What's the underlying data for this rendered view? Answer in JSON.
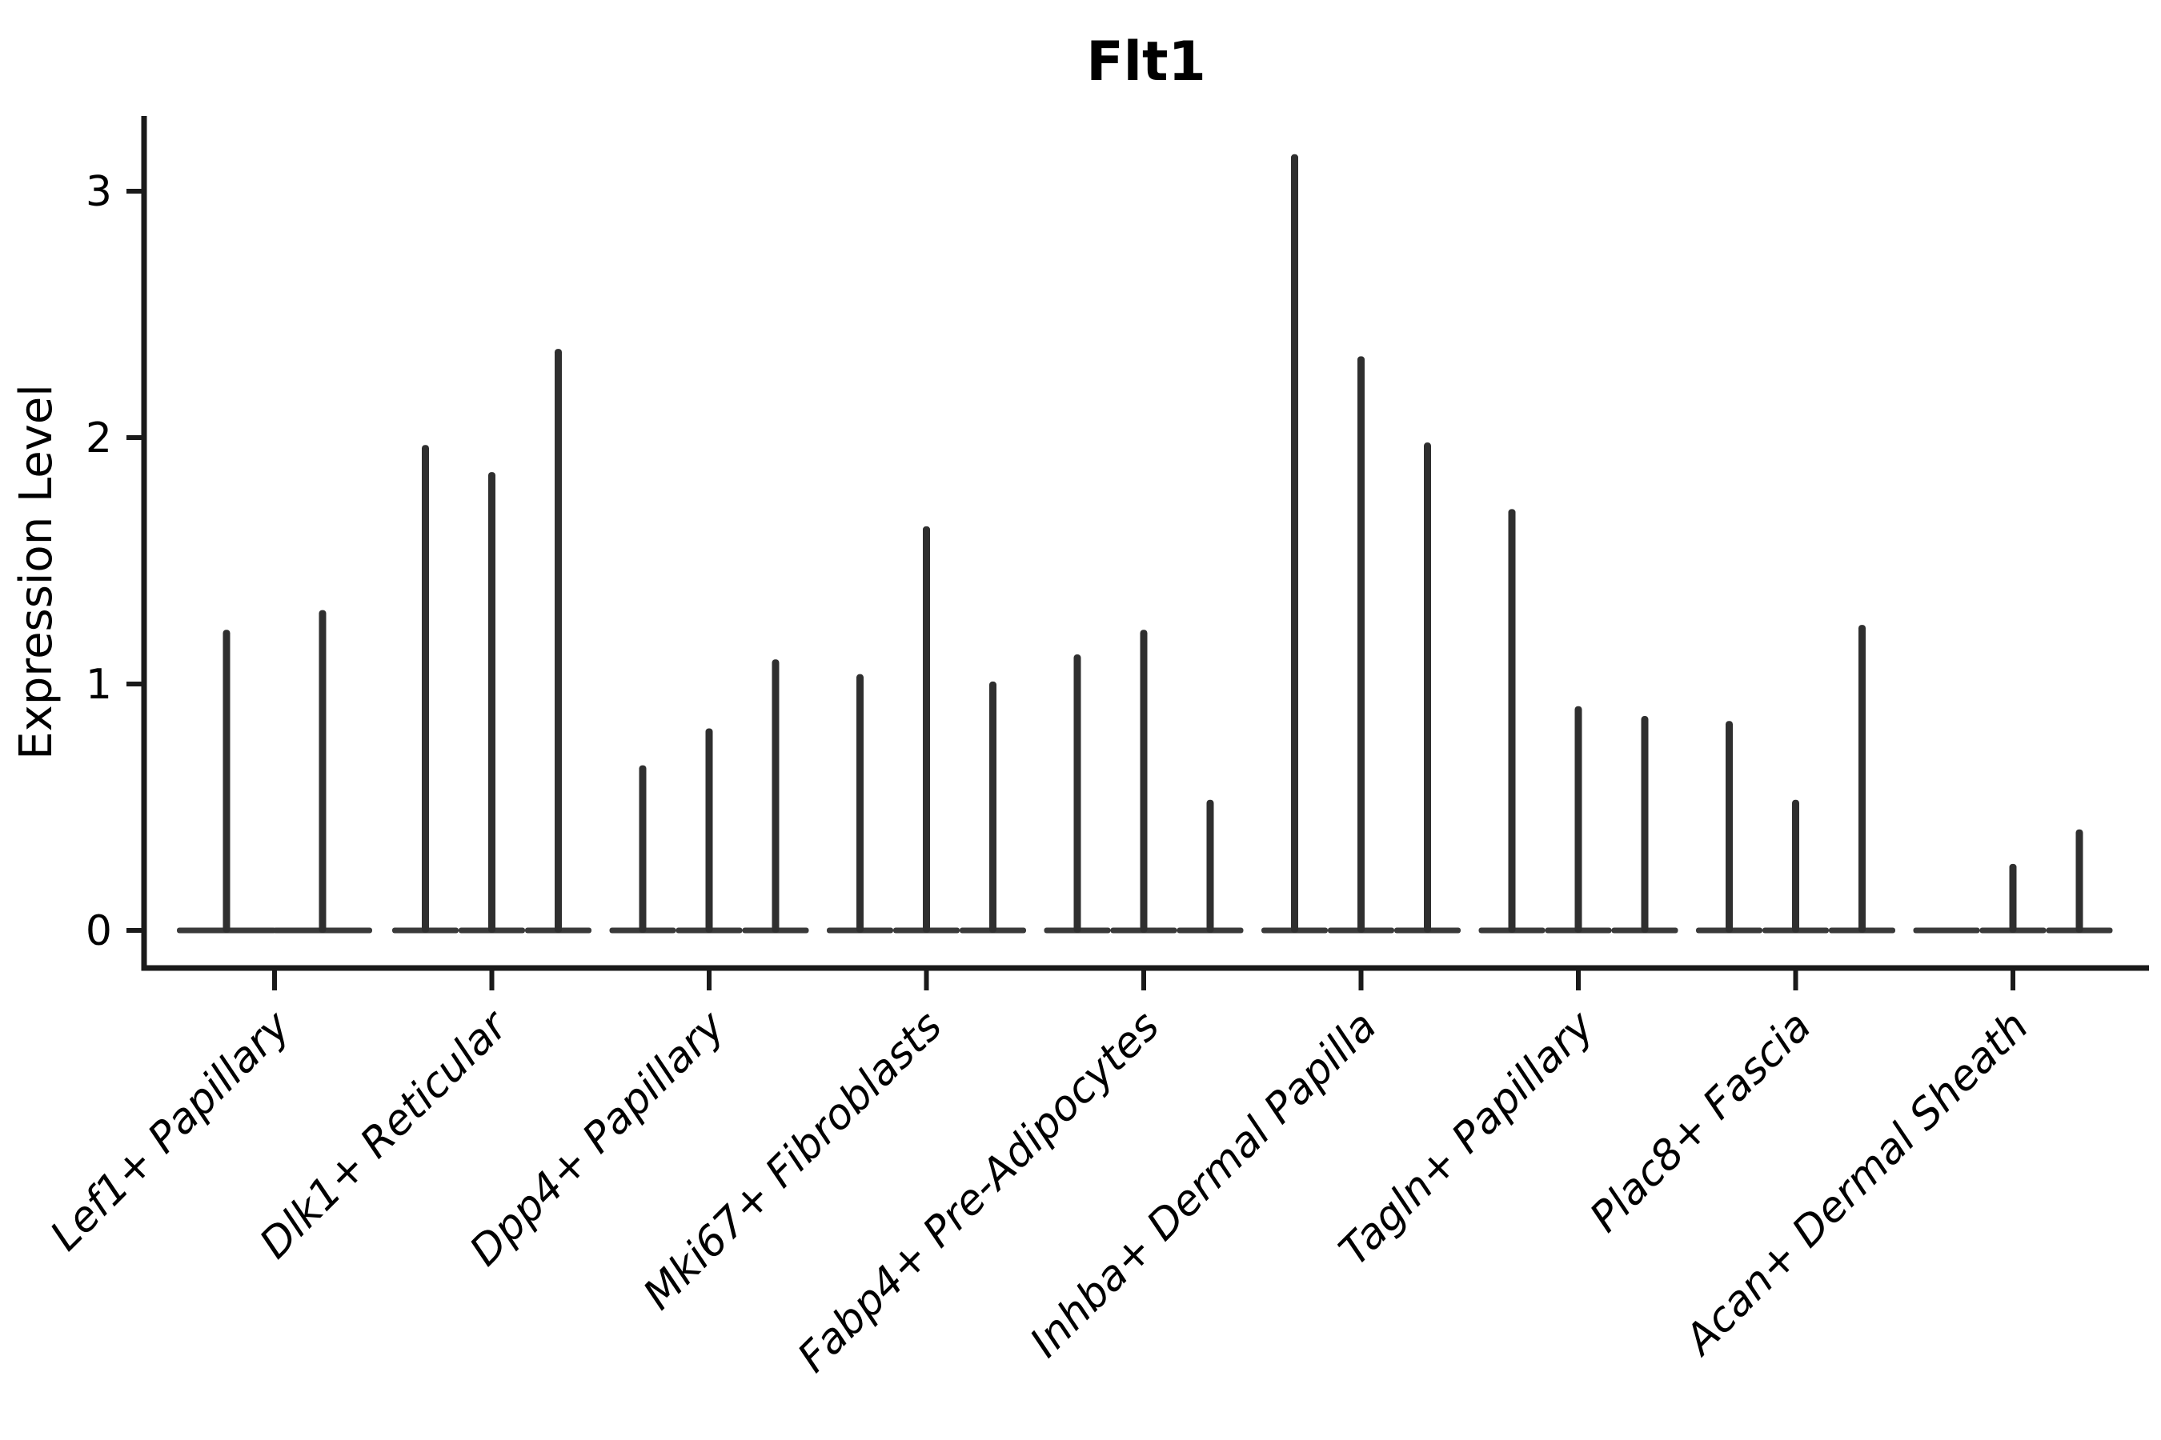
{
  "chart_data": {
    "type": "violin",
    "title": "Flt1",
    "ylabel": "Expression Level",
    "xlabel": "",
    "ylim": [
      0,
      3.4
    ],
    "yticks": [
      "0",
      "1",
      "2",
      "3"
    ],
    "ytick_values": [
      0,
      1,
      2,
      3
    ],
    "grid": false,
    "legend_position": "none",
    "categories": [
      "Lef1+ Papillary",
      "Dlk1+ Reticular",
      "Dpp4+ Papillary",
      "Mki67+ Fibroblasts",
      "Fabp4+ Pre-Adipocytes",
      "Inhba+ Dermal Papilla",
      "Tagln+ Papillary",
      "Plac8+ Fascia",
      "Acan+ Dermal Sheath"
    ],
    "series": [
      {
        "category": "Lef1+ Papillary",
        "violin_maxima": [
          1.22,
          1.3
        ]
      },
      {
        "category": "Dlk1+ Reticular",
        "violin_maxima": [
          1.97,
          1.86,
          2.36
        ]
      },
      {
        "category": "Dpp4+ Papillary",
        "violin_maxima": [
          0.67,
          0.82,
          1.1
        ]
      },
      {
        "category": "Mki67+ Fibroblasts",
        "violin_maxima": [
          1.04,
          1.64,
          1.01
        ]
      },
      {
        "category": "Fabp4+ Pre-Adipocytes",
        "violin_maxima": [
          1.12,
          1.22,
          0.53
        ]
      },
      {
        "category": "Inhba+ Dermal Papilla",
        "violin_maxima": [
          3.15,
          2.33,
          1.98
        ]
      },
      {
        "category": "Tagln+ Papillary",
        "violin_maxima": [
          1.71,
          0.91,
          0.87
        ]
      },
      {
        "category": "Plac8+ Fascia",
        "violin_maxima": [
          0.85,
          0.53,
          1.24
        ]
      },
      {
        "category": "Acan+ Dermal Sheath",
        "violin_maxima": [
          0.0,
          0.27,
          0.41
        ]
      }
    ],
    "colors": {
      "violin": "#2f2f2f",
      "violin_base": "#3a3a3a",
      "spine": "#1a1a1a",
      "text": "#000000",
      "background": "#ffffff"
    }
  }
}
